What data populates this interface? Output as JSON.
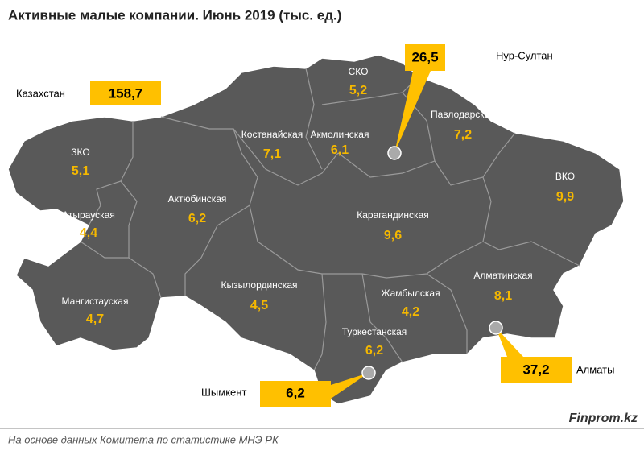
{
  "title": "Активные малые компании. Июнь 2019 (тыс. ед.)",
  "total": {
    "label": "Казахстан",
    "value": "158,7"
  },
  "regions": [
    {
      "name": "ЗКО",
      "value": "5,1"
    },
    {
      "name": "Атырауская",
      "value": "4,4"
    },
    {
      "name": "Мангистауская",
      "value": "4,7"
    },
    {
      "name": "Актюбинская",
      "value": "6,2"
    },
    {
      "name": "Костанайская",
      "value": "7,1"
    },
    {
      "name": "СКО",
      "value": "5,2"
    },
    {
      "name": "Акмолинская",
      "value": "6,1"
    },
    {
      "name": "Павлодарская",
      "value": "7,2"
    },
    {
      "name": "ВКО",
      "value": "9,9"
    },
    {
      "name": "Карагандинская",
      "value": "9,6"
    },
    {
      "name": "Кызылординская",
      "value": "4,5"
    },
    {
      "name": "Жамбылская",
      "value": "4,2"
    },
    {
      "name": "Туркестанская",
      "value": "6,2"
    },
    {
      "name": "Алматинская",
      "value": "8,1"
    }
  ],
  "cities": [
    {
      "name": "Нур-Султан",
      "value": "26,5"
    },
    {
      "name": "Алматы",
      "value": "37,2"
    },
    {
      "name": "Шымкент",
      "value": "6,2"
    }
  ],
  "footer": {
    "source": "На основе данных Комитета по статистике МНЭ РК",
    "brand": "Finprom.kz"
  }
}
